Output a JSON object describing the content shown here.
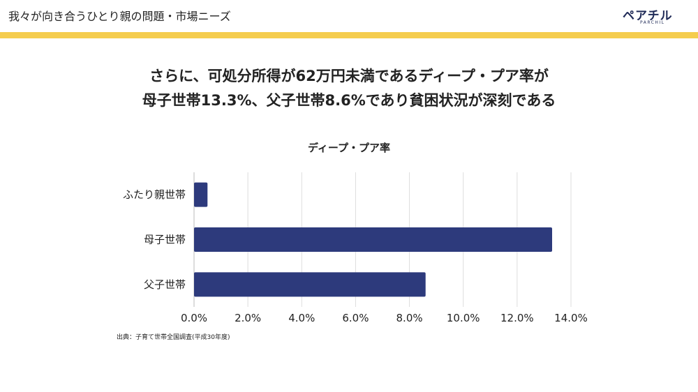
{
  "header": {
    "title": "我々が向き合うひとり親の問題・市場ニーズ",
    "logo_text": "ペアチル",
    "logo_sub": "PARCHIL"
  },
  "colors": {
    "accent": "#f5cd4e",
    "bar": "#2d3a7c",
    "brand": "#1f2a57"
  },
  "headline": {
    "line1": "さらに、可処分所得が62万円未満であるディープ・プア率が",
    "line2": "母子世帯13.3%、父子世帯8.6%であり貧困状況が深刻である"
  },
  "source": "出典：子育て世帯全国調査(平成30年度)",
  "chart_data": {
    "type": "bar",
    "orientation": "horizontal",
    "title": "ディープ・プア率",
    "categories": [
      "ふたり親世帯",
      "母子世帯",
      "父子世帯"
    ],
    "values": [
      0.5,
      13.3,
      8.6
    ],
    "xlim": [
      0,
      14
    ],
    "ticks": [
      "0.0%",
      "2.0%",
      "4.0%",
      "6.0%",
      "8.0%",
      "10.0%",
      "12.0%",
      "14.0%"
    ],
    "grid": true,
    "legend": "none"
  }
}
